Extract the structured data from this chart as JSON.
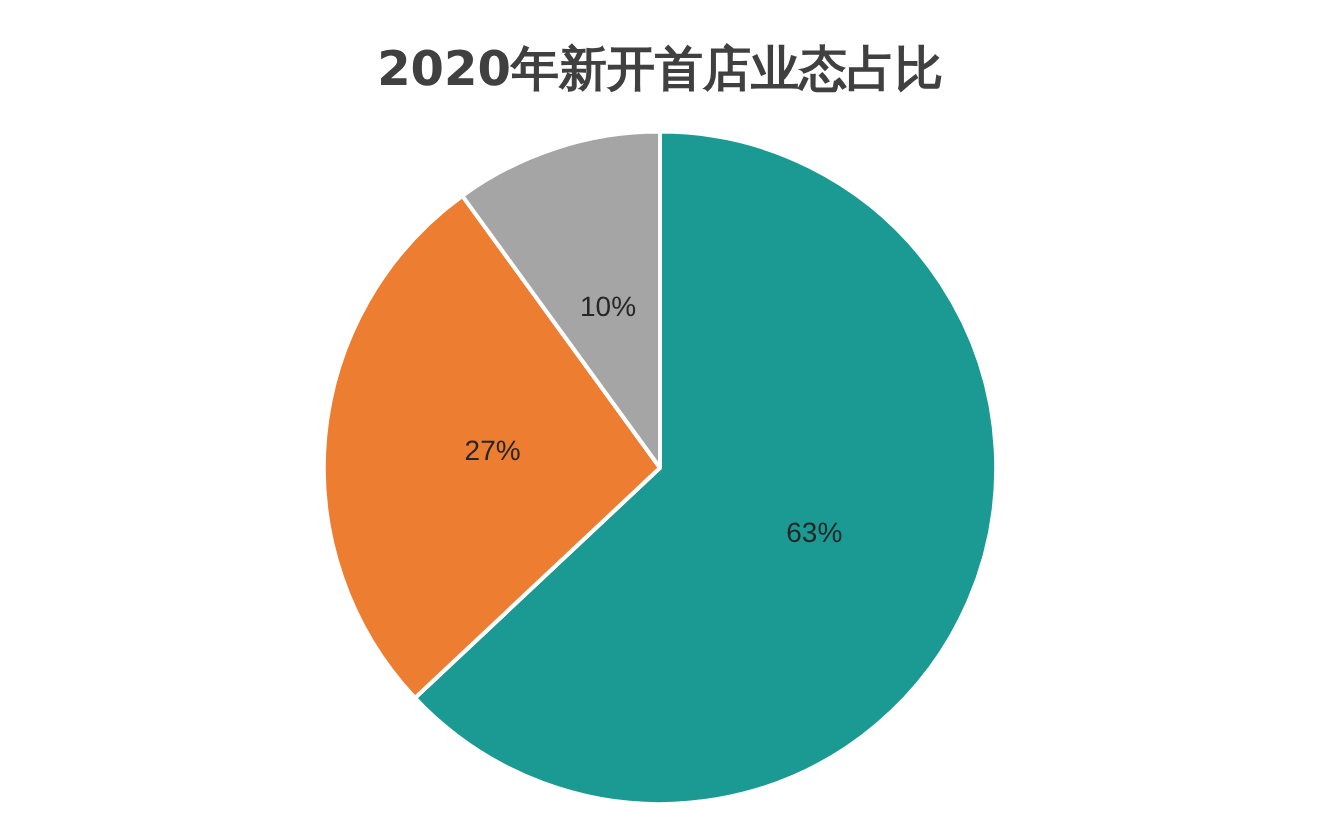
{
  "chart_data": {
    "type": "pie",
    "title": "2020年新开首店业态占比",
    "categories": [
      null,
      null,
      null
    ],
    "values": [
      63,
      27,
      10
    ],
    "colors": [
      "#1a9a93",
      "#ed7d31",
      "#a5a5a5"
    ],
    "value_labels": [
      "63%",
      "27%",
      "10%"
    ],
    "legend": false
  }
}
